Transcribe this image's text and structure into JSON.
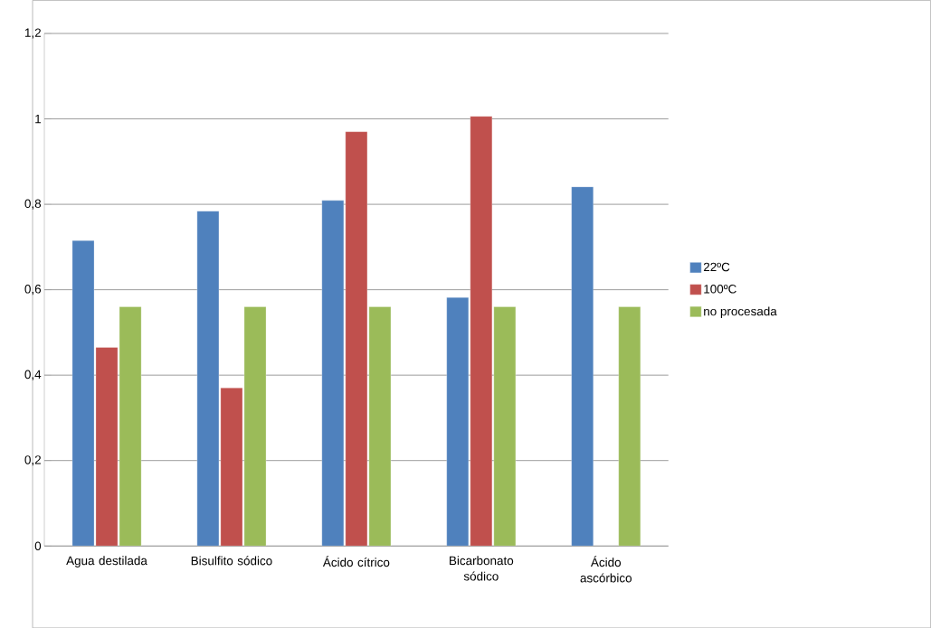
{
  "chart_data": {
    "type": "bar",
    "categories": [
      "Agua destilada",
      "Bisulfito sódico",
      "Ácido cítrico",
      "Bicarbonato sódico",
      "Ácido ascórbico"
    ],
    "series": [
      {
        "name": "22ºC",
        "color": "#4f81bd",
        "values": [
          0.715,
          0.784,
          0.809,
          0.582,
          0.841
        ]
      },
      {
        "name": "100ºC",
        "color": "#c0504d",
        "values": [
          0.465,
          0.37,
          0.97,
          1.006,
          null
        ]
      },
      {
        "name": "no procesada",
        "color": "#9bbb59",
        "values": [
          0.56,
          0.56,
          0.56,
          0.56,
          0.56
        ]
      }
    ],
    "ylim": [
      0,
      1.2
    ],
    "yticks": [
      {
        "value": 0,
        "label": "0"
      },
      {
        "value": 0.2,
        "label": "0,2"
      },
      {
        "value": 0.4,
        "label": "0,4"
      },
      {
        "value": 0.6,
        "label": "0,6"
      },
      {
        "value": 0.8,
        "label": "0,8"
      },
      {
        "value": 1,
        "label": "1"
      },
      {
        "value": 1.2,
        "label": "1,2"
      }
    ],
    "grid": "y",
    "legend": "right"
  }
}
